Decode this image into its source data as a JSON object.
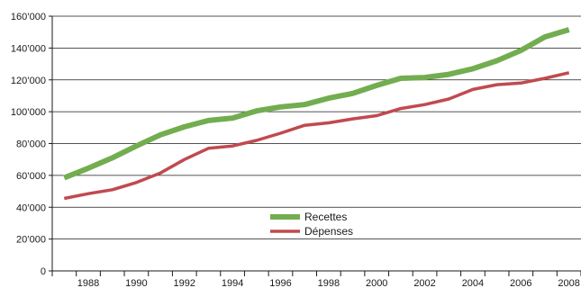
{
  "chart_data": {
    "type": "line",
    "title": "",
    "xlabel": "",
    "ylabel": "",
    "xlim": [
      1986.5,
      2008.5
    ],
    "ylim": [
      0,
      160000
    ],
    "grid": true,
    "legend": "center",
    "y_ticks": [
      {
        "value": 0,
        "label": "0"
      },
      {
        "value": 20000,
        "label": "20’000"
      },
      {
        "value": 40000,
        "label": "40’000"
      },
      {
        "value": 60000,
        "label": "60’000"
      },
      {
        "value": 80000,
        "label": "80’000"
      },
      {
        "value": 100000,
        "label": "100’000"
      },
      {
        "value": 120000,
        "label": "120’000"
      },
      {
        "value": 140000,
        "label": "140’000"
      },
      {
        "value": 160000,
        "label": "160’000"
      }
    ],
    "x_ticks": [
      {
        "value": 1988,
        "label": "1988"
      },
      {
        "value": 1990,
        "label": "1990"
      },
      {
        "value": 1992,
        "label": "1992"
      },
      {
        "value": 1994,
        "label": "1994"
      },
      {
        "value": 1996,
        "label": "1996"
      },
      {
        "value": 1998,
        "label": "1998"
      },
      {
        "value": 2000,
        "label": "2000"
      },
      {
        "value": 2002,
        "label": "2002"
      },
      {
        "value": 2004,
        "label": "2004"
      },
      {
        "value": 2006,
        "label": "2006"
      },
      {
        "value": 2008,
        "label": "2008"
      }
    ],
    "x": [
      1987,
      1988,
      1989,
      1990,
      1991,
      1992,
      1993,
      1994,
      1995,
      1996,
      1997,
      1998,
      1999,
      2000,
      2001,
      2002,
      2003,
      2004,
      2005,
      2006,
      2007,
      2008
    ],
    "series": [
      {
        "name": "Recettes",
        "color": "#72ad4f",
        "values": [
          58500,
          64500,
          71000,
          78500,
          85500,
          90500,
          94500,
          96000,
          100500,
          103000,
          104500,
          108500,
          111500,
          116500,
          121000,
          121500,
          123500,
          127000,
          132000,
          138500,
          147000,
          151500
        ]
      },
      {
        "name": "Dépenses",
        "color": "#c04a4f",
        "values": [
          45500,
          48500,
          51000,
          55500,
          61500,
          70000,
          77000,
          78500,
          82000,
          86500,
          91500,
          93000,
          95500,
          97500,
          102000,
          104500,
          108000,
          114000,
          117000,
          118000,
          121000,
          124500
        ]
      }
    ]
  }
}
